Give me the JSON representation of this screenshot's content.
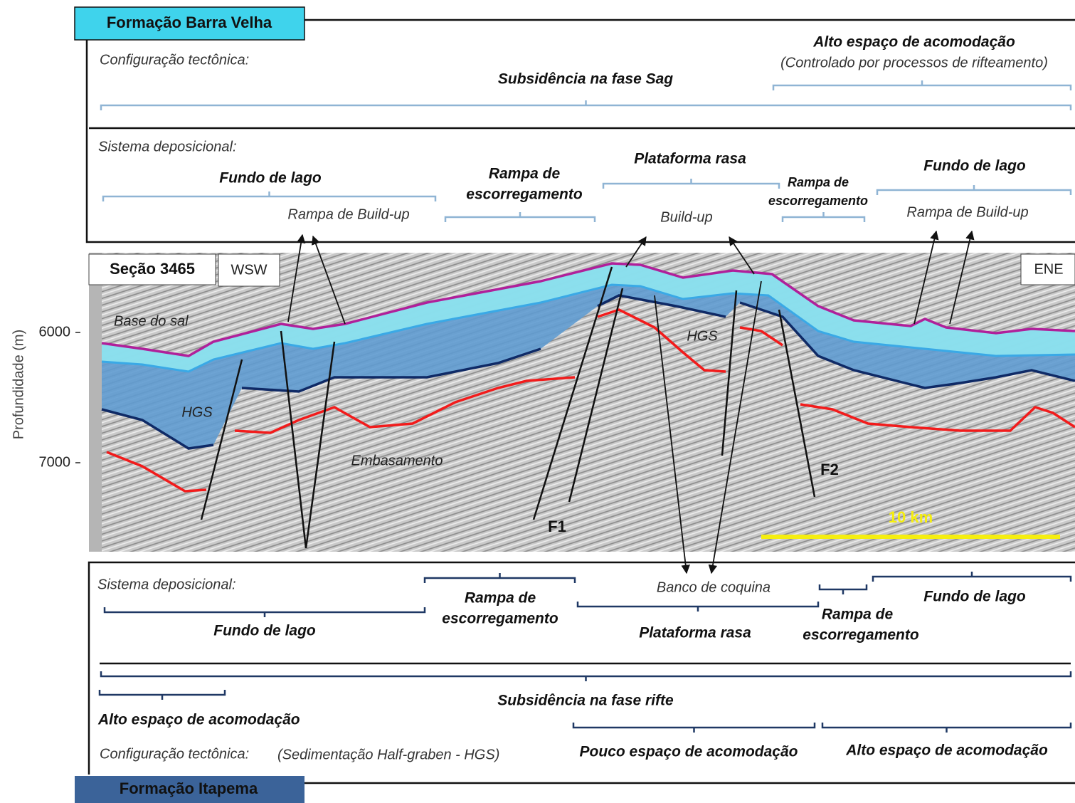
{
  "top": {
    "formation": "Formação Barra Velha",
    "tectonic": {
      "label": "Configuração tectônica:",
      "phase": "Subsidência na fase Sag",
      "accommodation": "Alto espaço de acomodação",
      "accommodation_note": "(Controlado por processos de rifteamento)"
    },
    "depositional": {
      "label": "Sistema deposicional:",
      "systems": [
        {
          "name": [
            "Fundo de lago"
          ],
          "detail": "Rampa de Build-up"
        },
        {
          "name": [
            "Rampa de",
            "escorregamento"
          ]
        },
        {
          "name": [
            "Plataforma rasa"
          ],
          "detail": "Build-up"
        },
        {
          "name": [
            "Rampa de",
            "escorregamento"
          ]
        },
        {
          "name": [
            "Fundo de lago"
          ],
          "detail": "Rampa de Build-up"
        }
      ]
    }
  },
  "section": {
    "title": "Seção 3465",
    "west": "WSW",
    "east": "ENE",
    "y_label": "Profundidade (m)",
    "depth_ticks": [
      6000,
      7000
    ],
    "labels": {
      "salt_base": "Base do sal",
      "hgs_left": "HGS",
      "hgs_center": "HGS",
      "basement": "Embasamento",
      "fault_1": "F1",
      "fault_2": "F2",
      "scale": "10 km"
    }
  },
  "bottom": {
    "depositional": {
      "label": "Sistema deposicional:",
      "systems": [
        {
          "name": [
            "Fundo de lago"
          ]
        },
        {
          "name": [
            "Rampa de",
            "escorregamento"
          ]
        },
        {
          "name": [
            "Plataforma rasa"
          ],
          "detail": "Banco de coquina"
        },
        {
          "name": [
            "Rampa de",
            "escorregamento"
          ]
        },
        {
          "name": [
            "Fundo de lago"
          ]
        }
      ]
    },
    "tectonic": {
      "phase": "Subsidência na fase rifte",
      "accommodation_left": "Alto espaço de acomodação",
      "label": "Configuração tectônica:",
      "note": "(Sedimentação Half-graben - HGS)",
      "accommodation_center": "Pouco espaço de acomodação",
      "accommodation_right": "Alto espaço de acomodação"
    },
    "formation": "Formação Itapema"
  }
}
